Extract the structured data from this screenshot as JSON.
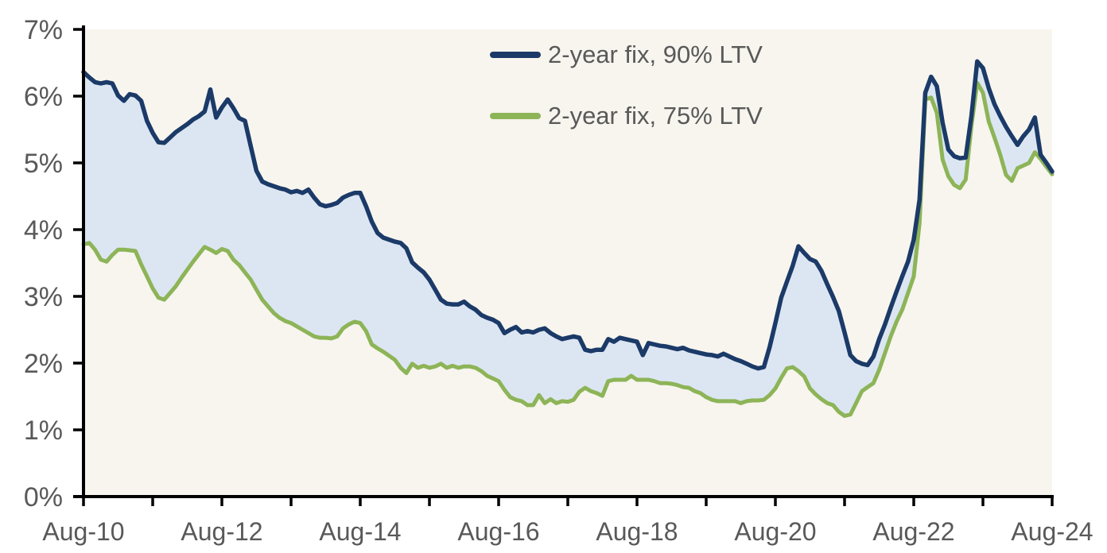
{
  "chart_data": {
    "type": "line",
    "title": "",
    "x_range": [
      "Aug-2010",
      "Aug-2024"
    ],
    "sampling": "monthly",
    "x_tick_labels": [
      "Aug-10",
      "Aug-12",
      "Aug-14",
      "Aug-16",
      "Aug-18",
      "Aug-20",
      "Aug-22",
      "Aug-24"
    ],
    "x_minor_ticks": "yearly",
    "y_tick_labels": [
      "0%",
      "1%",
      "2%",
      "3%",
      "4%",
      "5%",
      "6%",
      "7%"
    ],
    "ylim": [
      0,
      7
    ],
    "grid": false,
    "legend_position": "inside-top-center",
    "plot_background": "#f7f5ee",
    "page_background": "#ffffff",
    "axis_color": "#000000",
    "label_color": "#595959",
    "fill_between_color": "#dce6f2",
    "series": [
      {
        "name": "2-year fix, 90% LTV",
        "color": "#1b3a68",
        "values": [
          6.36,
          6.28,
          6.21,
          6.19,
          6.21,
          6.19,
          6.01,
          5.93,
          6.03,
          6.01,
          5.93,
          5.63,
          5.45,
          5.31,
          5.3,
          5.38,
          5.46,
          5.52,
          5.58,
          5.65,
          5.7,
          5.77,
          6.1,
          5.68,
          5.83,
          5.95,
          5.82,
          5.67,
          5.63,
          5.25,
          4.88,
          4.72,
          4.68,
          4.65,
          4.62,
          4.6,
          4.56,
          4.58,
          4.55,
          4.6,
          4.48,
          4.38,
          4.35,
          4.37,
          4.4,
          4.48,
          4.52,
          4.55,
          4.55,
          4.35,
          4.12,
          3.95,
          3.88,
          3.85,
          3.82,
          3.8,
          3.72,
          3.51,
          3.43,
          3.36,
          3.25,
          3.1,
          2.95,
          2.89,
          2.88,
          2.88,
          2.92,
          2.85,
          2.8,
          2.72,
          2.68,
          2.65,
          2.6,
          2.45,
          2.5,
          2.54,
          2.46,
          2.48,
          2.46,
          2.5,
          2.52,
          2.45,
          2.4,
          2.36,
          2.38,
          2.4,
          2.38,
          2.2,
          2.18,
          2.2,
          2.2,
          2.36,
          2.32,
          2.38,
          2.36,
          2.34,
          2.32,
          2.12,
          2.3,
          2.28,
          2.26,
          2.25,
          2.23,
          2.21,
          2.23,
          2.19,
          2.17,
          2.15,
          2.13,
          2.12,
          2.1,
          2.14,
          2.1,
          2.06,
          2.03,
          1.99,
          1.95,
          1.92,
          1.94,
          2.24,
          2.6,
          2.98,
          3.22,
          3.46,
          3.75,
          3.65,
          3.56,
          3.52,
          3.38,
          3.18,
          2.99,
          2.78,
          2.46,
          2.12,
          2.03,
          1.99,
          1.97,
          2.1,
          2.36,
          2.58,
          2.83,
          3.07,
          3.3,
          3.52,
          3.85,
          4.45,
          6.05,
          6.29,
          6.15,
          5.6,
          5.2,
          5.1,
          5.07,
          5.08,
          5.7,
          6.52,
          6.42,
          6.12,
          5.88,
          5.7,
          5.54,
          5.4,
          5.27,
          5.4,
          5.5,
          5.68,
          5.12,
          5.0,
          4.87
        ]
      },
      {
        "name": "2-year fix, 75% LTV",
        "color": "#8db457",
        "values": [
          3.78,
          3.8,
          3.7,
          3.55,
          3.52,
          3.62,
          3.7,
          3.7,
          3.69,
          3.68,
          3.48,
          3.3,
          3.12,
          2.98,
          2.95,
          3.05,
          3.15,
          3.28,
          3.4,
          3.52,
          3.63,
          3.74,
          3.7,
          3.65,
          3.71,
          3.68,
          3.55,
          3.47,
          3.36,
          3.25,
          3.1,
          2.95,
          2.85,
          2.75,
          2.68,
          2.63,
          2.6,
          2.55,
          2.5,
          2.45,
          2.4,
          2.38,
          2.38,
          2.37,
          2.4,
          2.52,
          2.58,
          2.62,
          2.6,
          2.48,
          2.28,
          2.22,
          2.17,
          2.11,
          2.05,
          1.93,
          1.85,
          1.99,
          1.93,
          1.96,
          1.93,
          1.95,
          1.99,
          1.93,
          1.96,
          1.93,
          1.95,
          1.95,
          1.93,
          1.88,
          1.81,
          1.77,
          1.73,
          1.6,
          1.49,
          1.45,
          1.43,
          1.37,
          1.37,
          1.52,
          1.4,
          1.46,
          1.4,
          1.43,
          1.42,
          1.45,
          1.57,
          1.63,
          1.58,
          1.55,
          1.51,
          1.73,
          1.75,
          1.75,
          1.75,
          1.81,
          1.75,
          1.75,
          1.75,
          1.73,
          1.7,
          1.7,
          1.69,
          1.67,
          1.64,
          1.63,
          1.58,
          1.55,
          1.49,
          1.45,
          1.43,
          1.43,
          1.43,
          1.43,
          1.4,
          1.43,
          1.44,
          1.44,
          1.45,
          1.52,
          1.62,
          1.78,
          1.92,
          1.94,
          1.88,
          1.8,
          1.62,
          1.53,
          1.46,
          1.4,
          1.37,
          1.27,
          1.21,
          1.23,
          1.4,
          1.58,
          1.64,
          1.7,
          1.9,
          2.15,
          2.4,
          2.62,
          2.8,
          3.05,
          3.3,
          4.1,
          5.95,
          5.98,
          5.75,
          5.05,
          4.8,
          4.67,
          4.62,
          4.75,
          5.55,
          6.2,
          6.05,
          5.62,
          5.38,
          5.12,
          4.82,
          4.73,
          4.92,
          4.96,
          5.0,
          5.16,
          5.06,
          4.94,
          4.83
        ]
      }
    ]
  },
  "legend": {
    "item_90": "2-year fix, 90% LTV",
    "item_75": "2-year fix, 75% LTV"
  }
}
